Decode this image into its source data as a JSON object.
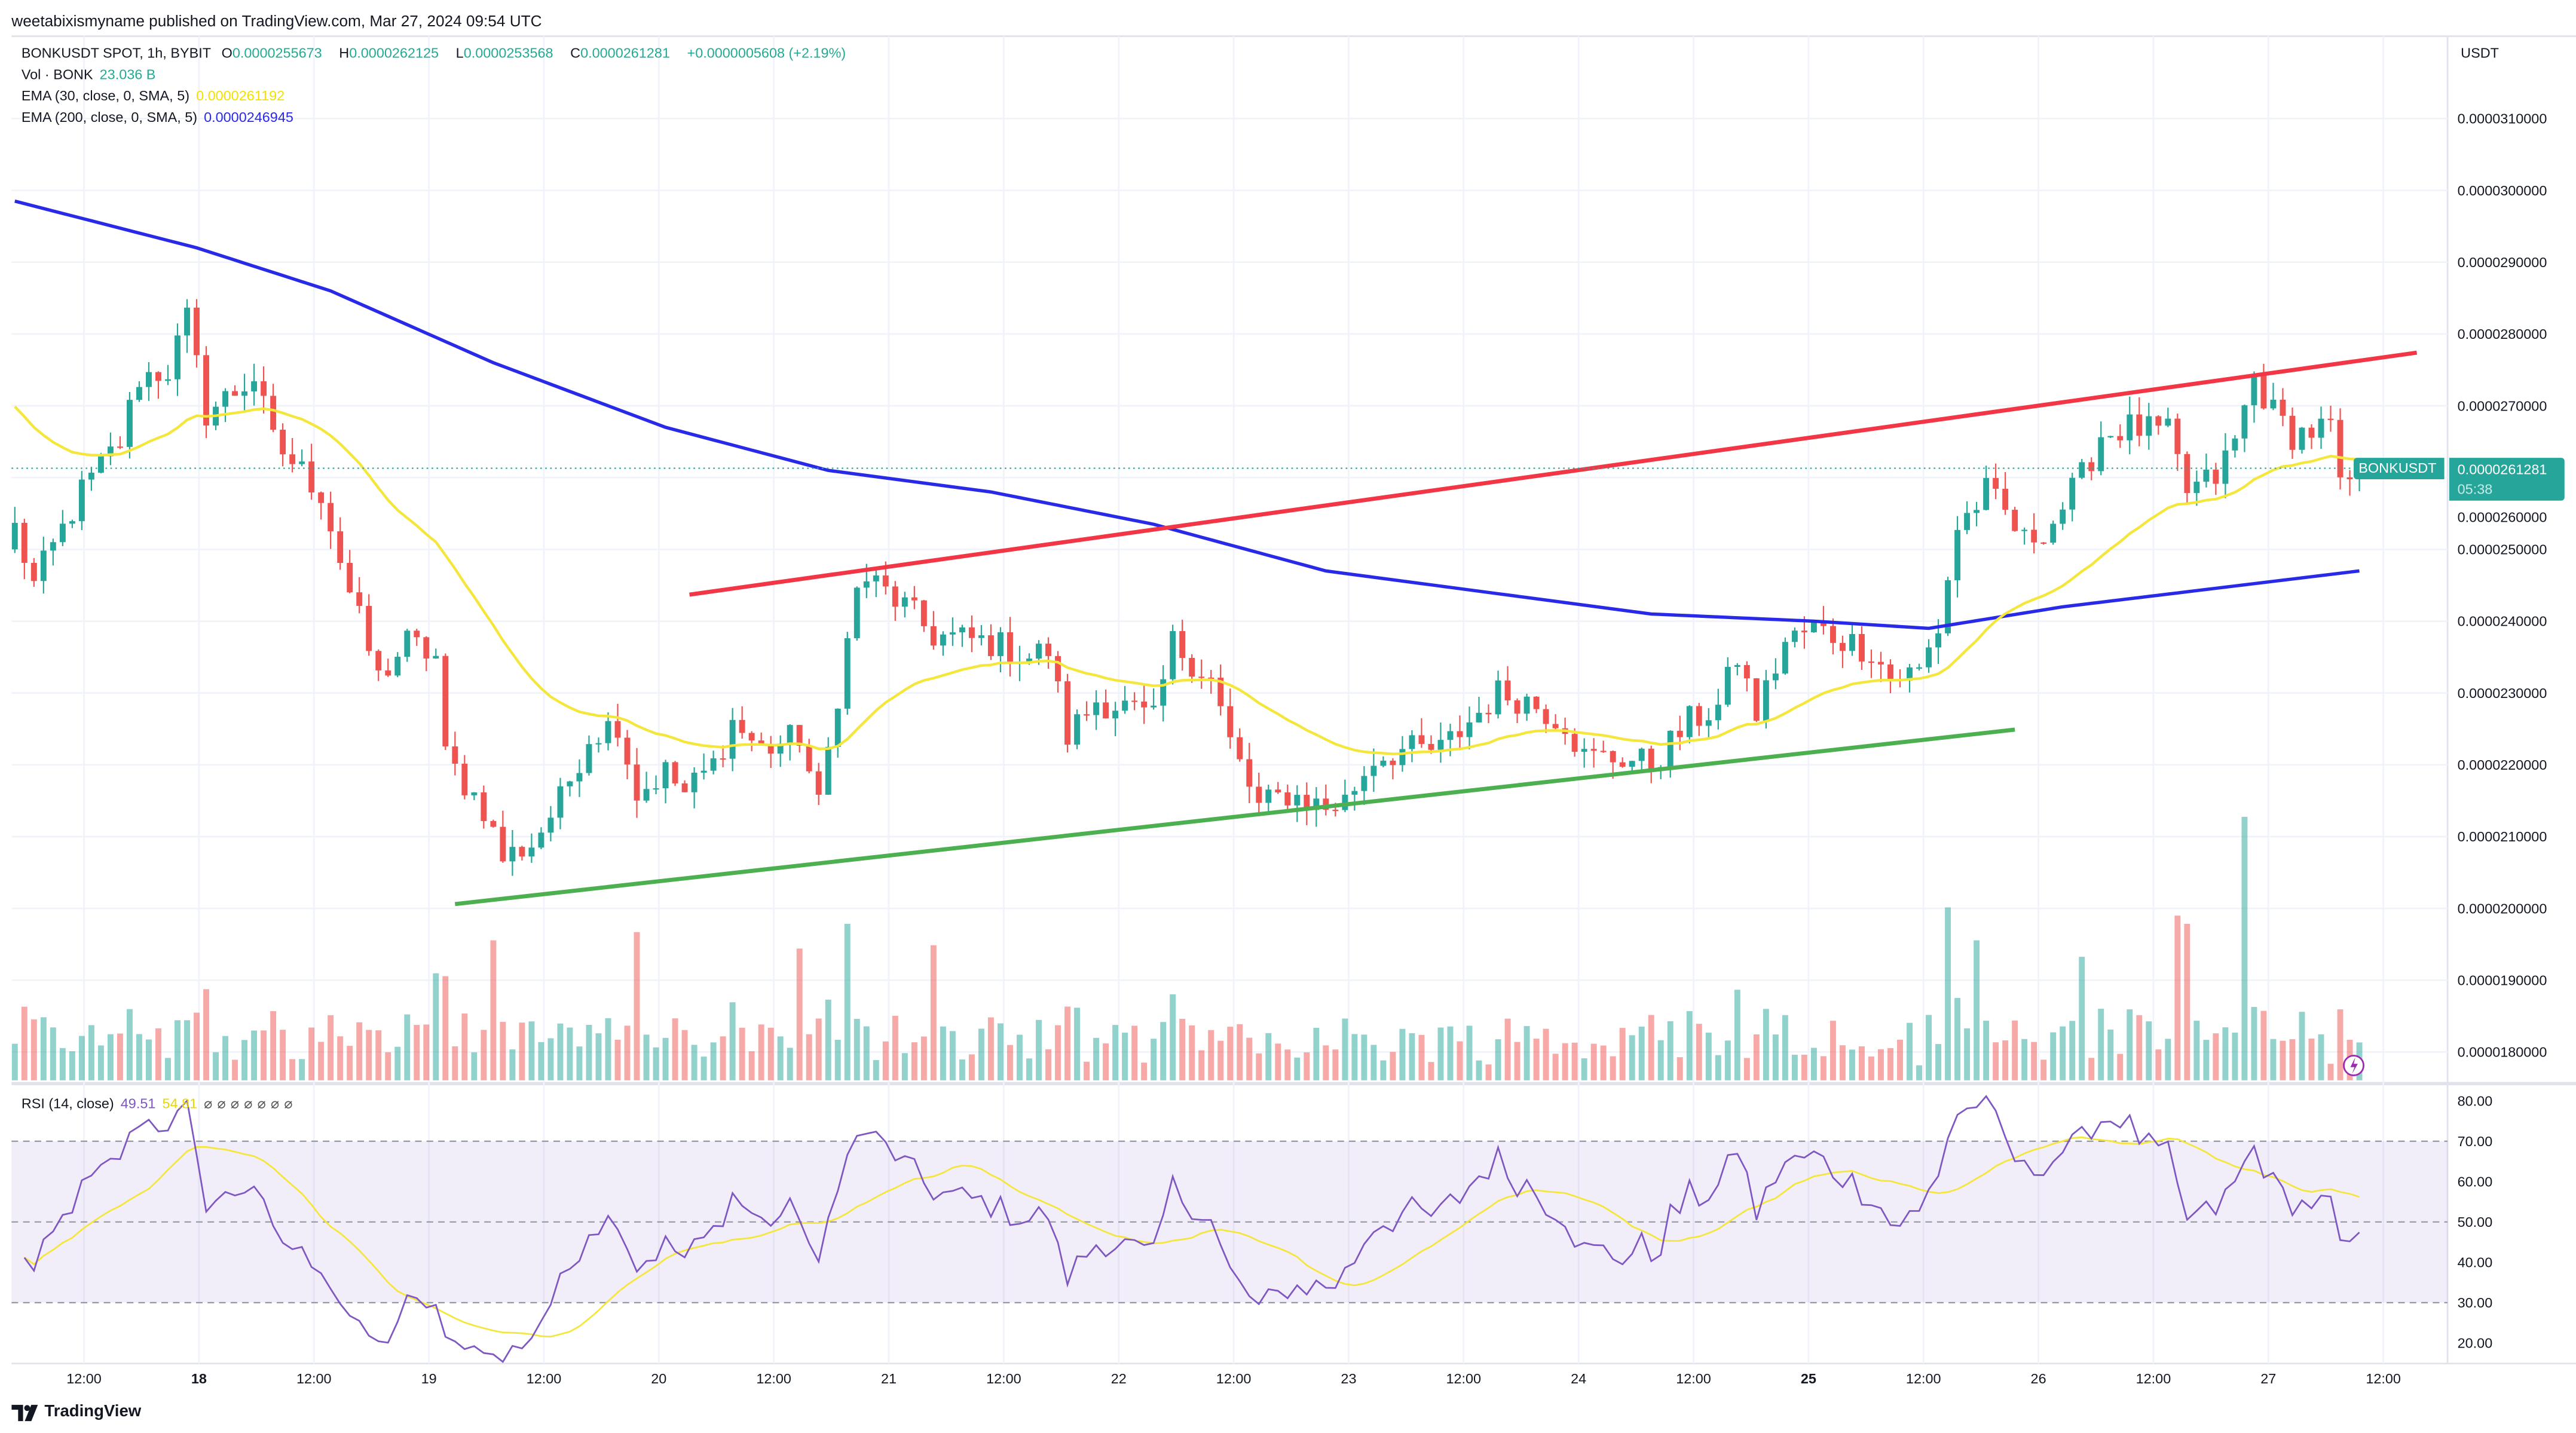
{
  "header": {
    "published": "weetabixismyname published on TradingView.com, Mar 27, 2024 09:54 UTC"
  },
  "legend": {
    "symbol": "BONKUSDT SPOT, 1h, BYBIT",
    "o_label": "O",
    "o": "0.0000255673",
    "h_label": "H",
    "h": "0.0000262125",
    "l_label": "L",
    "l": "0.0000253568",
    "c_label": "C",
    "c": "0.0000261281",
    "change": "+0.0000005608 (+2.19%)",
    "vol_label": "Vol · BONK",
    "vol": "23.036 B",
    "ema30_label": "EMA (30, close, 0, SMA, 5)",
    "ema30": "0.0000261192",
    "ema200_label": "EMA (200, close, 0, SMA, 5)",
    "ema200": "0.0000246945"
  },
  "price_axis": {
    "currency": "USDT",
    "symbol_tag": "BONKUSDT",
    "last_price": "0.0000261281",
    "countdown": "05:38"
  },
  "rsi": {
    "label": "RSI (14, close)",
    "value": "49.51",
    "ma": "54.81",
    "ticks": [
      "80.00",
      "70.00",
      "60.00",
      "50.00",
      "40.00",
      "30.00",
      "20.00"
    ]
  },
  "footer": {
    "brand": "TradingView"
  },
  "colors": {
    "up": "#26a69a",
    "down": "#ef5350",
    "ema30": "#f5e63b",
    "ema200": "#2929e8",
    "resistance": "#f23645",
    "support": "#4caf50",
    "rsi": "#7e57c2",
    "rsi_ma": "#f5e63b"
  },
  "chart_data": {
    "type": "candlestick",
    "title": "BONKUSDT SPOT, 1h, BYBIT",
    "units": "price ×1e-6 USDT",
    "ylim": [
      17.7,
      31.2
    ],
    "y_ticks": [
      "0.0000310000",
      "0.0000300000",
      "0.0000290000",
      "0.0000280000",
      "0.0000270000",
      "0.0000260000",
      "0.0000250000",
      "0.0000240000",
      "0.0000230000",
      "0.0000220000",
      "0.0000210000",
      "0.0000200000",
      "0.0000190000",
      "0.0000180000"
    ],
    "x_ticks": [
      "12:00",
      "18",
      "12:00",
      "19",
      "12:00",
      "20",
      "12:00",
      "21",
      "12:00",
      "22",
      "12:00",
      "23",
      "12:00",
      "24",
      "12:00",
      "25",
      "12:00",
      "26",
      "12:00",
      "27",
      "12:00"
    ],
    "x_ticks_bold": [
      "18",
      "25"
    ],
    "candle_count": 246,
    "close_anchors": [
      [
        0,
        25.3
      ],
      [
        2,
        24.5
      ],
      [
        7,
        25.8
      ],
      [
        11,
        26.5
      ],
      [
        13,
        27.4
      ],
      [
        16,
        27.5
      ],
      [
        18,
        28.2
      ],
      [
        20,
        26.9
      ],
      [
        25,
        27.4
      ],
      [
        27,
        26.5
      ],
      [
        32,
        25.8
      ],
      [
        35,
        24.4
      ],
      [
        38,
        23.2
      ],
      [
        41,
        23.7
      ],
      [
        44,
        23.5
      ],
      [
        45,
        22.1
      ],
      [
        49,
        21.4
      ],
      [
        51,
        20.7
      ],
      [
        54,
        20.9
      ],
      [
        57,
        21.5
      ],
      [
        60,
        22.4
      ],
      [
        63,
        22.6
      ],
      [
        65,
        21.6
      ],
      [
        68,
        21.9
      ],
      [
        70,
        21.6
      ],
      [
        73,
        22.0
      ],
      [
        75,
        22.6
      ],
      [
        78,
        22.2
      ],
      [
        82,
        22.4
      ],
      [
        84,
        21.4
      ],
      [
        86,
        23.0
      ],
      [
        88,
        24.4
      ],
      [
        89,
        24.6
      ],
      [
        93,
        24.2
      ],
      [
        96,
        23.8
      ],
      [
        102,
        23.7
      ],
      [
        106,
        23.5
      ],
      [
        108,
        23.6
      ],
      [
        110,
        22.4
      ],
      [
        113,
        22.9
      ],
      [
        116,
        22.8
      ],
      [
        119,
        22.6
      ],
      [
        121,
        23.7
      ],
      [
        125,
        23.2
      ],
      [
        127,
        22.3
      ],
      [
        130,
        21.4
      ],
      [
        133,
        21.6
      ],
      [
        137,
        21.4
      ],
      [
        139,
        21.5
      ],
      [
        142,
        22.1
      ],
      [
        145,
        22.2
      ],
      [
        149,
        22.2
      ],
      [
        152,
        22.6
      ],
      [
        155,
        23.0
      ],
      [
        158,
        22.9
      ],
      [
        162,
        22.6
      ],
      [
        164,
        22.1
      ],
      [
        168,
        22.1
      ],
      [
        171,
        22.0
      ],
      [
        175,
        22.6
      ],
      [
        178,
        22.8
      ],
      [
        180,
        23.5
      ],
      [
        182,
        22.7
      ],
      [
        185,
        23.7
      ],
      [
        188,
        23.9
      ],
      [
        190,
        23.8
      ],
      [
        194,
        23.6
      ],
      [
        196,
        23.2
      ],
      [
        199,
        23.3
      ],
      [
        201,
        23.9
      ],
      [
        203,
        25.3
      ],
      [
        206,
        25.8
      ],
      [
        208,
        25.5
      ],
      [
        210,
        25.1
      ],
      [
        213,
        25.4
      ],
      [
        216,
        26.0
      ],
      [
        218,
        26.6
      ],
      [
        221,
        26.7
      ],
      [
        225,
        26.6
      ],
      [
        227,
        25.8
      ],
      [
        230,
        26.0
      ],
      [
        232,
        26.5
      ],
      [
        234,
        27.4
      ],
      [
        236,
        26.9
      ],
      [
        238,
        26.6
      ],
      [
        242,
        26.7
      ],
      [
        243,
        25.8
      ],
      [
        245,
        26.13
      ]
    ],
    "ema30_start": 27.1,
    "ema200_anchors": [
      [
        0,
        29.85
      ],
      [
        19,
        29.2
      ],
      [
        33,
        28.6
      ],
      [
        50,
        27.6
      ],
      [
        68,
        26.7
      ],
      [
        85,
        26.1
      ],
      [
        102,
        25.8
      ],
      [
        119,
        25.35
      ],
      [
        137,
        24.7
      ],
      [
        154,
        24.4
      ],
      [
        171,
        24.1
      ],
      [
        188,
        24.0
      ],
      [
        200,
        23.9
      ],
      [
        214,
        24.2
      ],
      [
        245,
        24.7
      ]
    ],
    "volume_spikes_B": [
      [
        44,
        65
      ],
      [
        50,
        85
      ],
      [
        65,
        90
      ],
      [
        82,
        80
      ],
      [
        87,
        95
      ],
      [
        96,
        82
      ],
      [
        180,
        55
      ],
      [
        202,
        105
      ],
      [
        205,
        85
      ],
      [
        216,
        75
      ],
      [
        226,
        100
      ],
      [
        227,
        95
      ],
      [
        233,
        160
      ],
      [
        245,
        23
      ]
    ],
    "trendlines": [
      {
        "name": "resistance",
        "from": [
          70.5,
          24.37
        ],
        "to": [
          251,
          27.74
        ]
      },
      {
        "name": "support",
        "from": [
          46,
          20.06
        ],
        "to": [
          209,
          22.49
        ]
      }
    ],
    "rsi_levels": [
      70,
      50,
      30
    ]
  }
}
